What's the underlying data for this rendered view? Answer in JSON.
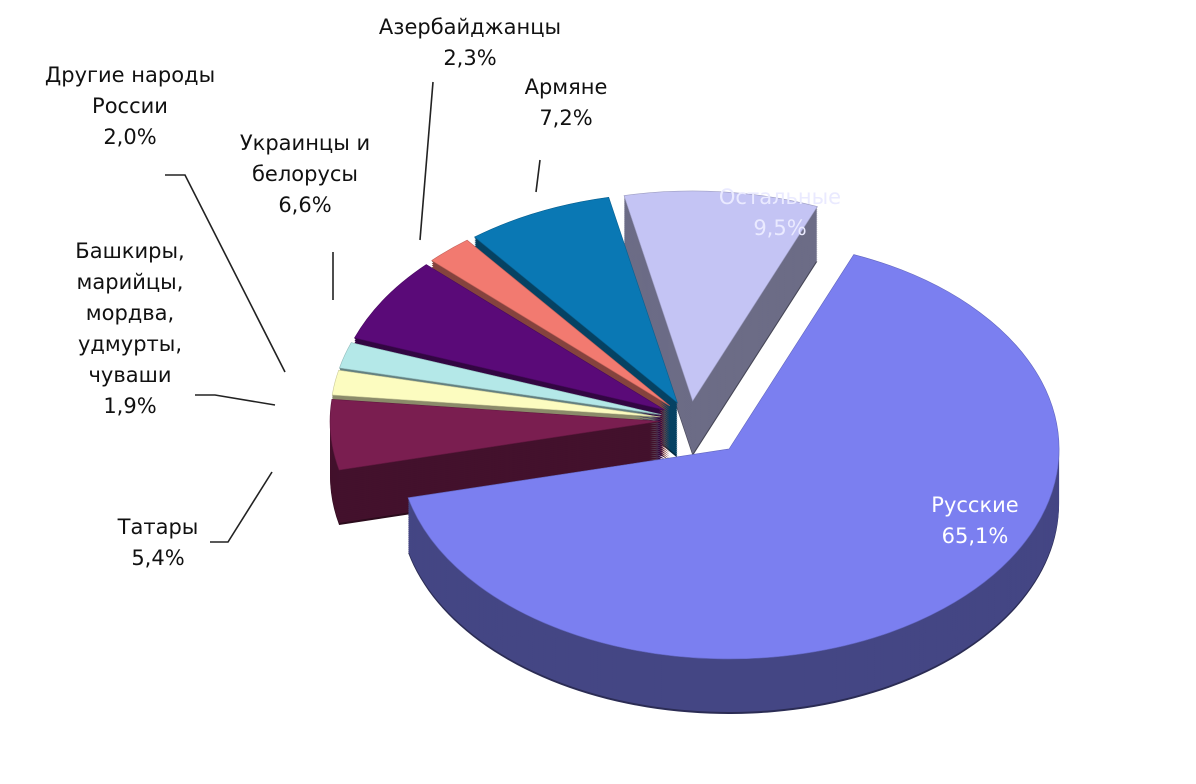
{
  "chart_data": {
    "type": "pie",
    "categories": [
      "Остальные",
      "Русские",
      "Татары",
      "Башкиры,\nмарийцы,\nмордва,\nудмурты,\nчуваши",
      "Другие народы\nРоссии",
      "Украинцы и\nбелорусы",
      "Азербайджанцы",
      "Армяне"
    ],
    "values": [
      9.5,
      65.1,
      5.4,
      1.9,
      2.0,
      6.6,
      2.3,
      7.2
    ],
    "value_labels": [
      "9,5%",
      "65,1%",
      "5,4%",
      "1,9%",
      "2,0%",
      "6,6%",
      "2,3%",
      "7,2%"
    ],
    "colors": [
      "#c4c4f4",
      "#7b7ff0",
      "#7a1e50",
      "#fcfcc0",
      "#b4e8e8",
      "#5a0a78",
      "#f27a70",
      "#0a78b4"
    ]
  }
}
